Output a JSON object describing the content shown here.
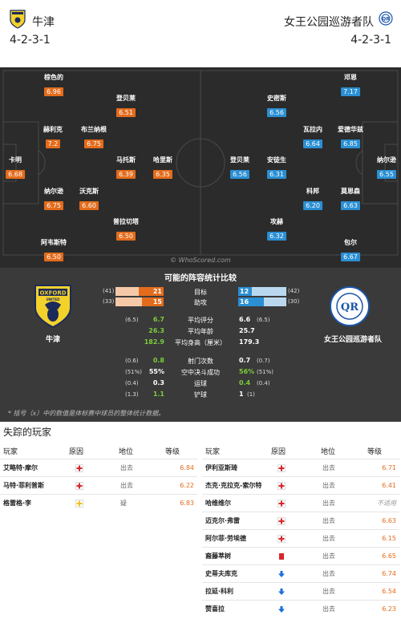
{
  "home": {
    "name": "牛津",
    "formation": "4-2-3-1",
    "players": [
      {
        "name": "棕色的",
        "rating": "6.96"
      },
      {
        "name": "登贝莱",
        "rating": "6.51"
      },
      {
        "name": "赫利克",
        "rating": "7.2"
      },
      {
        "name": "布兰纳根",
        "rating": "6.75"
      },
      {
        "name": "卡明",
        "rating": "6.68"
      },
      {
        "name": "马托斯",
        "rating": "6.39"
      },
      {
        "name": "哈里斯",
        "rating": "6.35"
      },
      {
        "name": "纳尔逊",
        "rating": "6.75"
      },
      {
        "name": "沃克斯",
        "rating": "6.60"
      },
      {
        "name": "普拉切塔",
        "rating": "6.50"
      },
      {
        "name": "阿韦斯特",
        "rating": "6.50"
      }
    ]
  },
  "away": {
    "name": "女王公园巡游者队",
    "formation": "4-2-3-1",
    "players": [
      {
        "name": "邓恩",
        "rating": "7.17"
      },
      {
        "name": "史密斯",
        "rating": "6.56"
      },
      {
        "name": "瓦拉内",
        "rating": "6.64"
      },
      {
        "name": "爱德华兹",
        "rating": "6.85"
      },
      {
        "name": "纳尔逊",
        "rating": "6.55"
      },
      {
        "name": "登贝莱",
        "rating": "6.56"
      },
      {
        "name": "安徒生",
        "rating": "6.31"
      },
      {
        "name": "科邦",
        "rating": "6.20"
      },
      {
        "name": "莫恩森",
        "rating": "6.63"
      },
      {
        "name": "攻赫",
        "rating": "6.32"
      },
      {
        "name": "包尔",
        "rating": "6.67"
      }
    ]
  },
  "watermark": "© WhoScored.com",
  "stats": {
    "title": "可能的阵容统计比较",
    "bars": [
      {
        "label": "目标",
        "home_season": "(41)",
        "home": "21",
        "home_frac": 0.51,
        "away": "12",
        "away_frac": 0.29,
        "away_season": "(42)"
      },
      {
        "label": "助攻",
        "home_season": "(33)",
        "home": "15",
        "home_frac": 0.45,
        "away": "16",
        "away_frac": 0.53,
        "away_season": "(30)"
      }
    ],
    "rows1": [
      {
        "label": "平均评分",
        "home_season": "(6.5)",
        "home": "6.7",
        "away": "6.6",
        "away_season": "(6.5)",
        "hl": "home"
      },
      {
        "label": "平均年龄",
        "home_season": "",
        "home": "26.3",
        "away": "25.7",
        "away_season": "",
        "hl": "home"
      },
      {
        "label": "平均身高（厘米）",
        "home_season": "",
        "home": "182.9",
        "away": "179.3",
        "away_season": "",
        "hl": "home"
      }
    ],
    "rows2": [
      {
        "label": "射门次数",
        "home_season": "(0.6)",
        "home": "0.8",
        "away": "0.7",
        "away_season": "(0.7)",
        "hl": "home"
      },
      {
        "label": "空中决斗成功",
        "home_season": "(51%)",
        "home": "55%",
        "away": "56%",
        "away_season": "(51%)",
        "hl": "away"
      },
      {
        "label": "运球",
        "home_season": "(0.4)",
        "home": "0.3",
        "away": "0.4",
        "away_season": "(0.4)",
        "hl": "away"
      },
      {
        "label": "铲球",
        "home_season": "(1.3)",
        "home": "1.1",
        "away": "1",
        "away_season": "(1)",
        "hl": "home"
      }
    ],
    "footnote": "* 括号（x）中的数值是体标赛中球员的整体统计数据。"
  },
  "missing": {
    "title": "失踪的玩家",
    "headers": {
      "player": "玩家",
      "reason": "原因",
      "status": "地位",
      "rating": "等级"
    },
    "home": [
      {
        "name": "艾略特·摩尔",
        "icon": "injury",
        "status": "出去",
        "rating": "6.84"
      },
      {
        "name": "马特·菲利普斯",
        "icon": "injury",
        "status": "出去",
        "rating": "6.22"
      },
      {
        "name": "格雷格·李",
        "icon": "doubtful",
        "status": "疑",
        "rating": "6.83"
      }
    ],
    "away": [
      {
        "name": "伊利亚斯琦",
        "icon": "injury",
        "status": "出去",
        "rating": "6.71"
      },
      {
        "name": "杰克·克拉克-索尔特",
        "icon": "injury",
        "status": "出去",
        "rating": "6.41"
      },
      {
        "name": "哈维维尔",
        "icon": "injury",
        "status": "出去",
        "rating": "不适用"
      },
      {
        "name": "迈克尔·弗雷",
        "icon": "injury",
        "status": "出去",
        "rating": "6.63"
      },
      {
        "name": "阿尔菲·劳埃德",
        "icon": "injury",
        "status": "出去",
        "rating": "6.15"
      },
      {
        "name": "裔藤萃树",
        "icon": "red-card",
        "status": "出去",
        "rating": "6.65"
      },
      {
        "name": "史蒂夫库克",
        "icon": "transfer",
        "status": "出去",
        "rating": "6.74"
      },
      {
        "name": "拉延·科利",
        "icon": "transfer",
        "status": "出去",
        "rating": "6.54"
      },
      {
        "name": "赞喜拉",
        "icon": "transfer",
        "status": "出去",
        "rating": "6.23"
      }
    ]
  },
  "colors": {
    "home": "#e36c1c",
    "away": "#2a8fd3",
    "pitch": "#2b2b2b"
  }
}
